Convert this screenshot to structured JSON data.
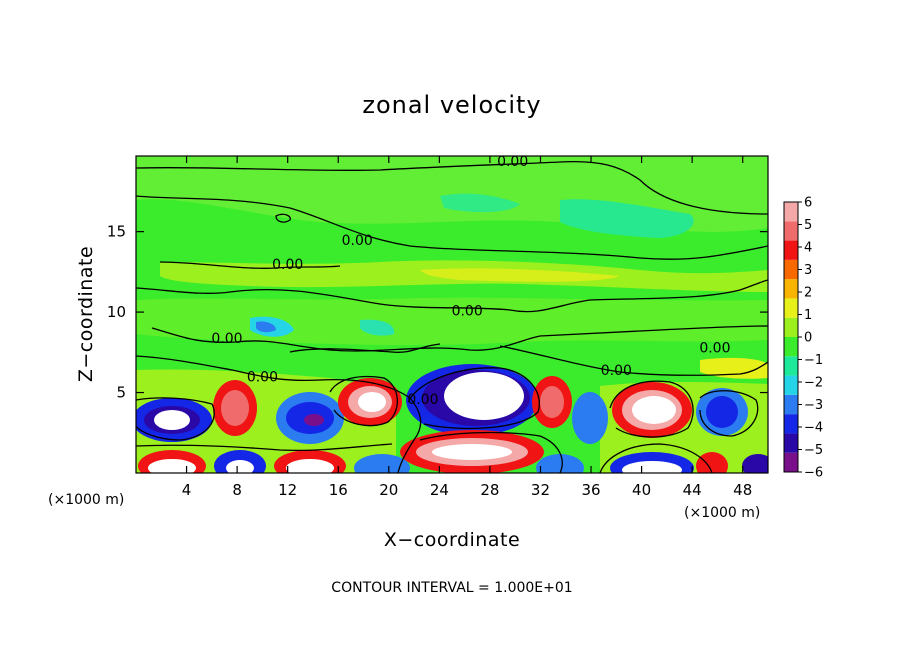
{
  "chart_data": {
    "type": "heatmap",
    "title": "zonal velocity",
    "xlabel": "X−coordinate",
    "ylabel": "Z−coordinate",
    "x_unit_left": "(×1000 m)",
    "x_unit_right": "(×1000 m)",
    "xlim": [
      0,
      50
    ],
    "ylim": [
      0,
      19.7
    ],
    "x_ticks": [
      4,
      8,
      12,
      16,
      20,
      24,
      28,
      32,
      36,
      40,
      44,
      48
    ],
    "x_tick_labels": [
      "4",
      "8",
      "12",
      "16",
      "20",
      "24",
      "28",
      "32",
      "36",
      "40",
      "44",
      "48"
    ],
    "y_ticks": [
      5,
      10,
      15
    ],
    "y_tick_labels": [
      "5",
      "10",
      "15"
    ],
    "colorbar": {
      "range": [
        -6,
        6
      ],
      "ticks": [
        6,
        5,
        4,
        3,
        2,
        1,
        0,
        -1,
        -2,
        -3,
        -4,
        -5,
        -6
      ],
      "tick_labels": [
        "6",
        "5",
        "4",
        "3",
        "2",
        "1",
        "0",
        "−1",
        "−2",
        "−3",
        "−4",
        "−5",
        "−6"
      ],
      "colors": [
        "#7a0f8c",
        "#2a08a8",
        "#1426e6",
        "#2a7cf0",
        "#25d4e6",
        "#1ee89a",
        "#3bec2c",
        "#9cf01e",
        "#e8f01a",
        "#f8b400",
        "#f86a00",
        "#f01414",
        "#f06c6c",
        "#f4a8a8"
      ]
    },
    "contour_labels": [
      {
        "text": "0.00",
        "x": 29.8,
        "y": 19.2
      },
      {
        "text": "0.00",
        "x": 17.5,
        "y": 14.3
      },
      {
        "text": "0.00",
        "x": 12.0,
        "y": 12.8
      },
      {
        "text": "0.00",
        "x": 26.2,
        "y": 9.9
      },
      {
        "text": "0.00",
        "x": 7.2,
        "y": 8.2
      },
      {
        "text": "0.00",
        "x": 45.8,
        "y": 7.6
      },
      {
        "text": "0.00",
        "x": 38.0,
        "y": 6.2
      },
      {
        "text": "0.00",
        "x": 10.0,
        "y": 5.8
      },
      {
        "text": "0.00",
        "x": 22.7,
        "y": 4.4
      }
    ],
    "footnote": "CONTOUR INTERVAL = 1.000E+01"
  }
}
